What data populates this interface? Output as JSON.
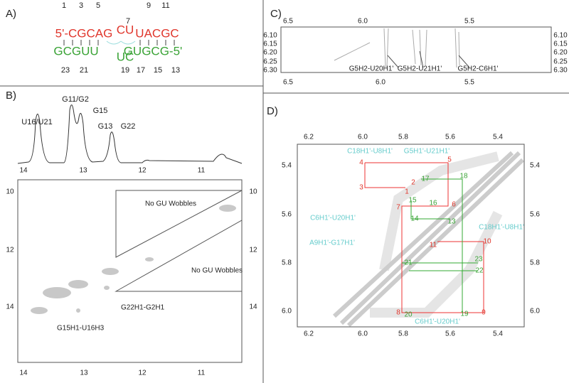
{
  "panel_a": {
    "label": "A)",
    "top_numbers": [
      "1",
      "3",
      "5",
      "7",
      "9",
      "11"
    ],
    "top_strand": [
      "5'-CGCAG",
      "CU",
      "UACGC"
    ],
    "bottom_strand": [
      "GCGUU",
      "UC",
      "GUGCG-5'"
    ],
    "bottom_numbers": [
      "23",
      "21",
      "19",
      "17",
      "15",
      "13"
    ]
  },
  "panel_b": {
    "label": "B)",
    "peaks": [
      "U16/U21",
      "G11/G2",
      "G15",
      "G13",
      "G22"
    ],
    "spectrum_ticks": [
      "14",
      "13",
      "12",
      "11"
    ],
    "left_ticks": [
      "10",
      "12",
      "14"
    ],
    "right_ticks": [
      "10",
      "12",
      "14"
    ],
    "bottom_ticks": [
      "14",
      "13",
      "12",
      "11"
    ],
    "regions": [
      "No GU Wobbles",
      "No GU Wobbles"
    ],
    "annotations": [
      "G22H1-G2H1",
      "G15H1-U16H3"
    ]
  },
  "panel_c": {
    "label": "C)",
    "top_ticks": [
      "6.5",
      "6.0",
      "5.5"
    ],
    "bottom_ticks": [
      "6.5",
      "6.0",
      "5.5"
    ],
    "left_ticks": [
      "6.10",
      "6.15",
      "6.20",
      "6.25",
      "6.30"
    ],
    "right_ticks": [
      "6.10",
      "6.15",
      "6.20",
      "6.25",
      "6.30"
    ],
    "annotations": [
      "G5H2-U20H1'",
      "G5H2-U21H1'",
      "G5H2-C6H1'"
    ]
  },
  "panel_d": {
    "label": "D)",
    "top_ticks": [
      "6.2",
      "6.0",
      "5.8",
      "5.6",
      "5.4"
    ],
    "bottom_ticks": [
      "6.2",
      "6.0",
      "5.8",
      "5.6",
      "5.4"
    ],
    "left_ticks": [
      "5.4",
      "5.6",
      "5.8",
      "6.0"
    ],
    "right_ticks": [
      "5.4",
      "5.6",
      "5.8",
      "6.0"
    ],
    "cyan_labels": [
      "C18H1'-U8H1'",
      "G5H1'-U21H1'",
      "C6H1'-U20H1'",
      "C18H1'-U8H1'",
      "A9H1'-G17H1'",
      "C6H1'-U20H1'"
    ],
    "red_labels": [
      "4",
      "5",
      "2",
      "3",
      "1",
      "7",
      "6",
      "11",
      "10",
      "8",
      "9"
    ],
    "green_labels": [
      "17",
      "18",
      "15",
      "16",
      "14",
      "13",
      "23",
      "21",
      "22",
      "20",
      "19"
    ]
  }
}
